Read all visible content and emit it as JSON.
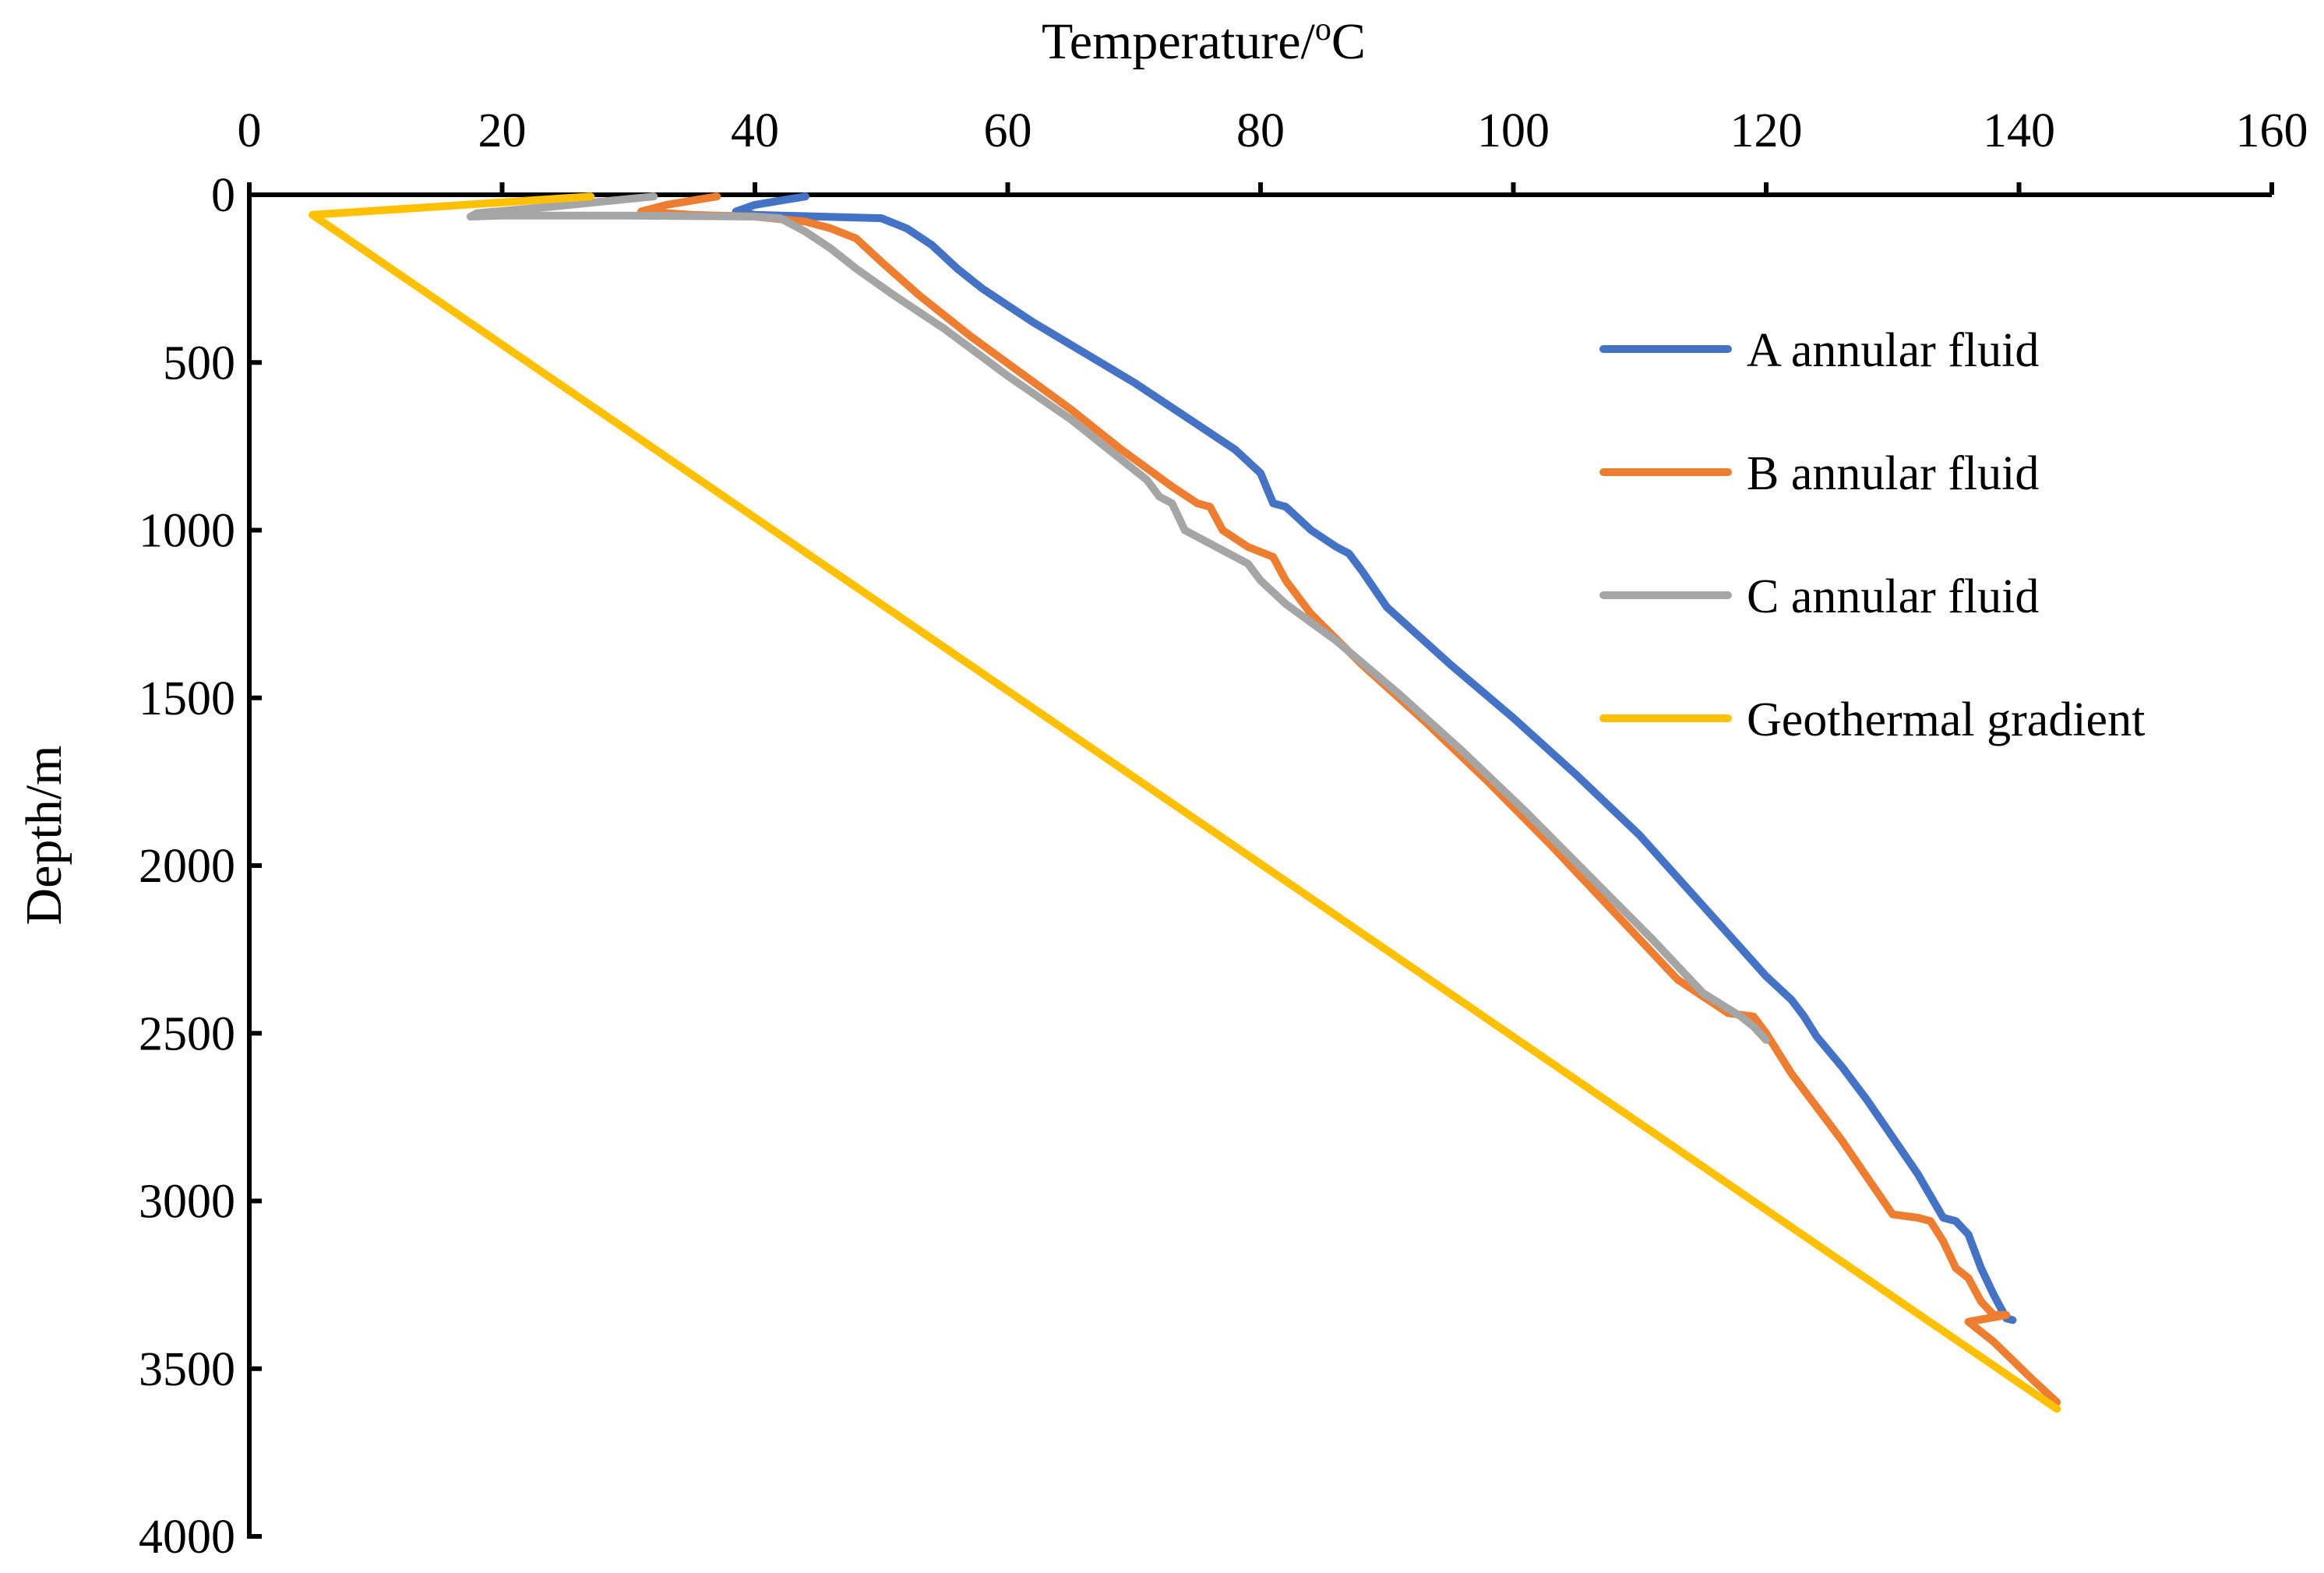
{
  "chart_data": {
    "type": "line",
    "title": "",
    "xlabel": "Temperature/",
    "xlabel_superscript": "o",
    "xlabel_unit": "C",
    "ylabel": "Depth/m",
    "xlim": [
      0,
      160
    ],
    "ylim": [
      0,
      4000
    ],
    "y_inverted": true,
    "x_axis_position": "top",
    "x_ticks": [
      0,
      20,
      40,
      60,
      80,
      100,
      120,
      140,
      160
    ],
    "y_ticks": [
      0,
      500,
      1000,
      1500,
      2000,
      2500,
      3000,
      3500,
      4000
    ],
    "grid": false,
    "legend_position": "right",
    "series": [
      {
        "name": "A annular fluid",
        "color": "#4472C4",
        "x": [
          44,
          40,
          38.5,
          40,
          50,
          52,
          54,
          56,
          58,
          62,
          66,
          70,
          74,
          78,
          80,
          81,
          82,
          84,
          86,
          87,
          88,
          90,
          95,
          100,
          105,
          110,
          115,
          120,
          122,
          123,
          124,
          126,
          128,
          130,
          132,
          134,
          135,
          136,
          137,
          138,
          139,
          139.5
        ],
        "y": [
          5,
          30,
          50,
          60,
          70,
          100,
          150,
          220,
          280,
          380,
          470,
          560,
          660,
          760,
          830,
          920,
          930,
          1000,
          1050,
          1070,
          1120,
          1230,
          1400,
          1560,
          1730,
          1910,
          2120,
          2330,
          2400,
          2450,
          2510,
          2600,
          2700,
          2810,
          2920,
          3050,
          3060,
          3100,
          3200,
          3280,
          3350,
          3355
        ]
      },
      {
        "name": "B annular fluid",
        "color": "#ED7D31",
        "x": [
          37,
          33,
          31,
          35,
          40,
          44,
          46,
          48,
          50,
          53,
          57,
          61,
          65,
          69,
          73,
          75,
          76,
          77,
          79,
          81,
          82,
          84,
          88,
          93,
          98,
          103,
          108,
          113,
          117,
          119,
          120,
          121,
          122,
          124,
          126,
          128,
          130,
          132,
          133,
          134,
          135,
          136,
          137,
          138,
          139,
          136,
          138,
          141,
          143
        ],
        "y": [
          5,
          30,
          50,
          60,
          65,
          80,
          100,
          130,
          200,
          300,
          420,
          530,
          640,
          760,
          870,
          920,
          930,
          1000,
          1050,
          1080,
          1150,
          1250,
          1400,
          1570,
          1750,
          1940,
          2140,
          2340,
          2440,
          2450,
          2500,
          2560,
          2620,
          2720,
          2820,
          2930,
          3040,
          3050,
          3060,
          3120,
          3200,
          3230,
          3300,
          3340,
          3340,
          3360,
          3420,
          3530,
          3600
        ]
      },
      {
        "name": "C annular fluid",
        "color": "#A5A5A5",
        "x": [
          32,
          28,
          24,
          18,
          17.5,
          20,
          30,
          40,
          42,
          43,
          44,
          46,
          48,
          51,
          55,
          60,
          65,
          68,
          71,
          72,
          73,
          74,
          77,
          79,
          80,
          82,
          86,
          91,
          96,
          101,
          106,
          111,
          115,
          118,
          119,
          120
        ],
        "y": [
          5,
          20,
          35,
          55,
          65,
          62,
          62,
          65,
          70,
          90,
          110,
          160,
          220,
          300,
          400,
          540,
          670,
          760,
          850,
          900,
          920,
          1000,
          1060,
          1100,
          1150,
          1220,
          1330,
          1490,
          1660,
          1840,
          2030,
          2220,
          2380,
          2450,
          2480,
          2520
        ]
      },
      {
        "name": "Geothermal gradient",
        "color": "#FFC000",
        "x": [
          27,
          5,
          143
        ],
        "y": [
          5,
          60,
          3620
        ]
      }
    ]
  }
}
